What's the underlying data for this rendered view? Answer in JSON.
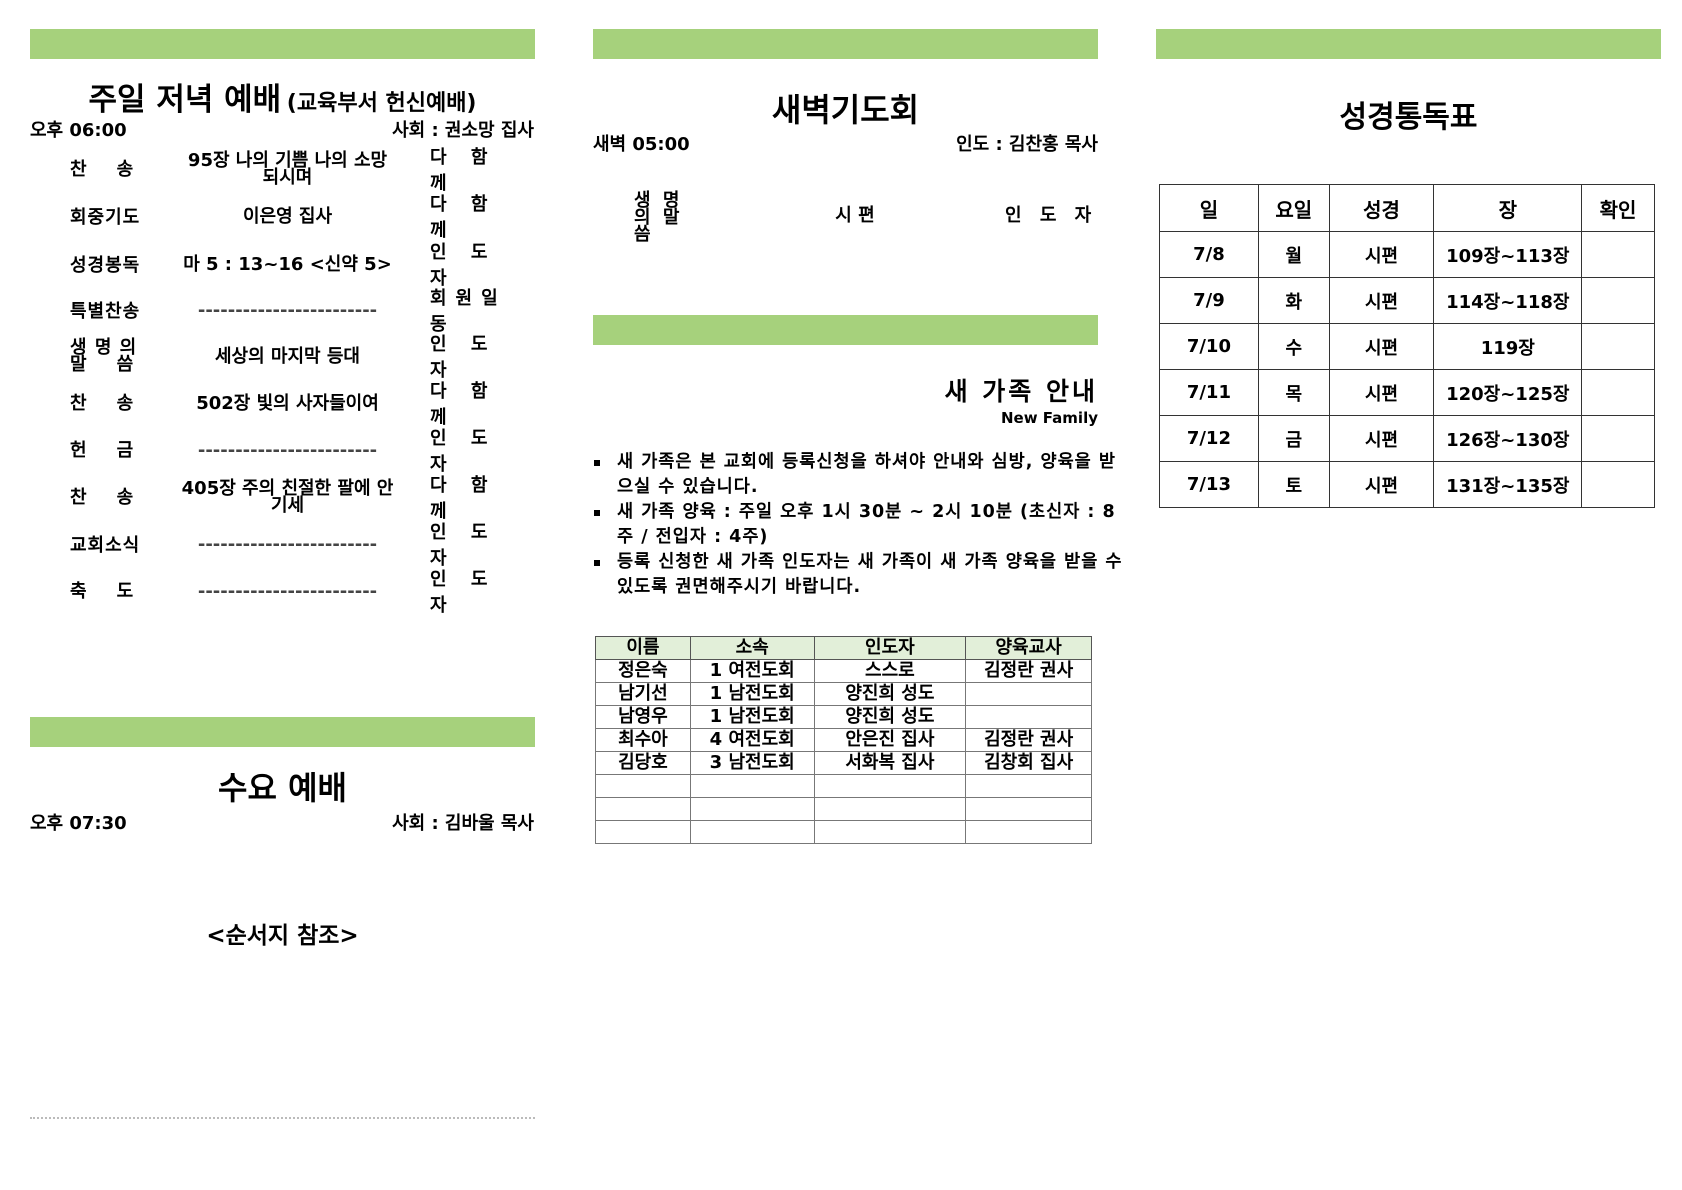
{
  "colors": {
    "section_bar": "#a6d17c",
    "table_header_bg": "#e2efd9"
  },
  "sunday_evening": {
    "title": "주일 저녁 예배",
    "subtitle": "(교육부서 헌신예배)",
    "time": "오후 06:00",
    "host": "사회 : 권소망 집사",
    "order": [
      {
        "item": "찬    송",
        "content": "95장 나의 기쁨 나의 소망되시며",
        "by": "다 함 께"
      },
      {
        "item": "회중기도",
        "content": "이은영 집사",
        "by": "다 함 께"
      },
      {
        "item": "성경봉독",
        "content": "마 5 : 13~16 <신약 5>",
        "by": "인 도 자"
      },
      {
        "item": "특별찬송",
        "content": "------------------------",
        "by": "회원일동"
      },
      {
        "item": "생 명 의 말    씀",
        "content": "세상의 마지막 등대",
        "by": "인 도 자"
      },
      {
        "item": "찬    송",
        "content": "502장 빛의 사자들이여",
        "by": "다 함 께"
      },
      {
        "item": "헌    금",
        "content": "------------------------",
        "by": "인 도 자"
      },
      {
        "item": "찬    송",
        "content": "405장 주의 친절한 팔에 안기세",
        "by": "다 함 께"
      },
      {
        "item": "교회소식",
        "content": "------------------------",
        "by": "인 도 자"
      },
      {
        "item": "축    도",
        "content": "------------------------",
        "by": "인 도 자"
      }
    ]
  },
  "wednesday": {
    "title": "수요 예배",
    "time": "오후 07:30",
    "host": "사회 : 김바울 목사",
    "note": "<순서지 참조>"
  },
  "dawn_prayer": {
    "title": "새벽기도회",
    "time": "새벽 05:00",
    "leader": "인도 : 김찬홍 목사",
    "row": {
      "item": "생 명 의 말    씀",
      "content": "시  편",
      "by": "인 도 자"
    }
  },
  "new_family": {
    "title": "새 가족 안내",
    "subtitle": "New Family",
    "bullets": [
      "새 가족은 본 교회에 등록신청을 하셔야 안내와 심방, 양육을 받으실 수 있습니다.",
      "새 가족 양육 : 주일 오후 1시 30분 ~ 2시 10분 (초신자 : 8주 / 전입자 : 4주)",
      "등록 신청한 새 가족 인도자는 새 가족이 새 가족 양육을 받을 수 있도록 권면해주시기 바랍니다."
    ],
    "table": {
      "headers": [
        "이름",
        "소속",
        "인도자",
        "양육교사"
      ],
      "rows": [
        [
          "정은숙",
          "1 여전도회",
          "스스로",
          "김정란 권사"
        ],
        [
          "남기선",
          "1 남전도회",
          "양진희 성도",
          ""
        ],
        [
          "남영우",
          "1 남전도회",
          "양진희 성도",
          ""
        ],
        [
          "최수아",
          "4 여전도회",
          "안은진 집사",
          "김정란 권사"
        ],
        [
          "김당호",
          "3 남전도회",
          "서화복 집사",
          "김창회 집사"
        ],
        [
          "",
          "",
          "",
          ""
        ],
        [
          "",
          "",
          "",
          ""
        ],
        [
          "",
          "",
          "",
          ""
        ]
      ]
    }
  },
  "bible_reading": {
    "title": "성경통독표",
    "headers": [
      "일",
      "요일",
      "성경",
      "장",
      "확인"
    ],
    "rows": [
      [
        "7/8",
        "월",
        "시편",
        "109장~113장",
        ""
      ],
      [
        "7/9",
        "화",
        "시편",
        "114장~118장",
        ""
      ],
      [
        "7/10",
        "수",
        "시편",
        "119장",
        ""
      ],
      [
        "7/11",
        "목",
        "시편",
        "120장~125장",
        ""
      ],
      [
        "7/12",
        "금",
        "시편",
        "126장~130장",
        ""
      ],
      [
        "7/13",
        "토",
        "시편",
        "131장~135장",
        ""
      ]
    ]
  }
}
